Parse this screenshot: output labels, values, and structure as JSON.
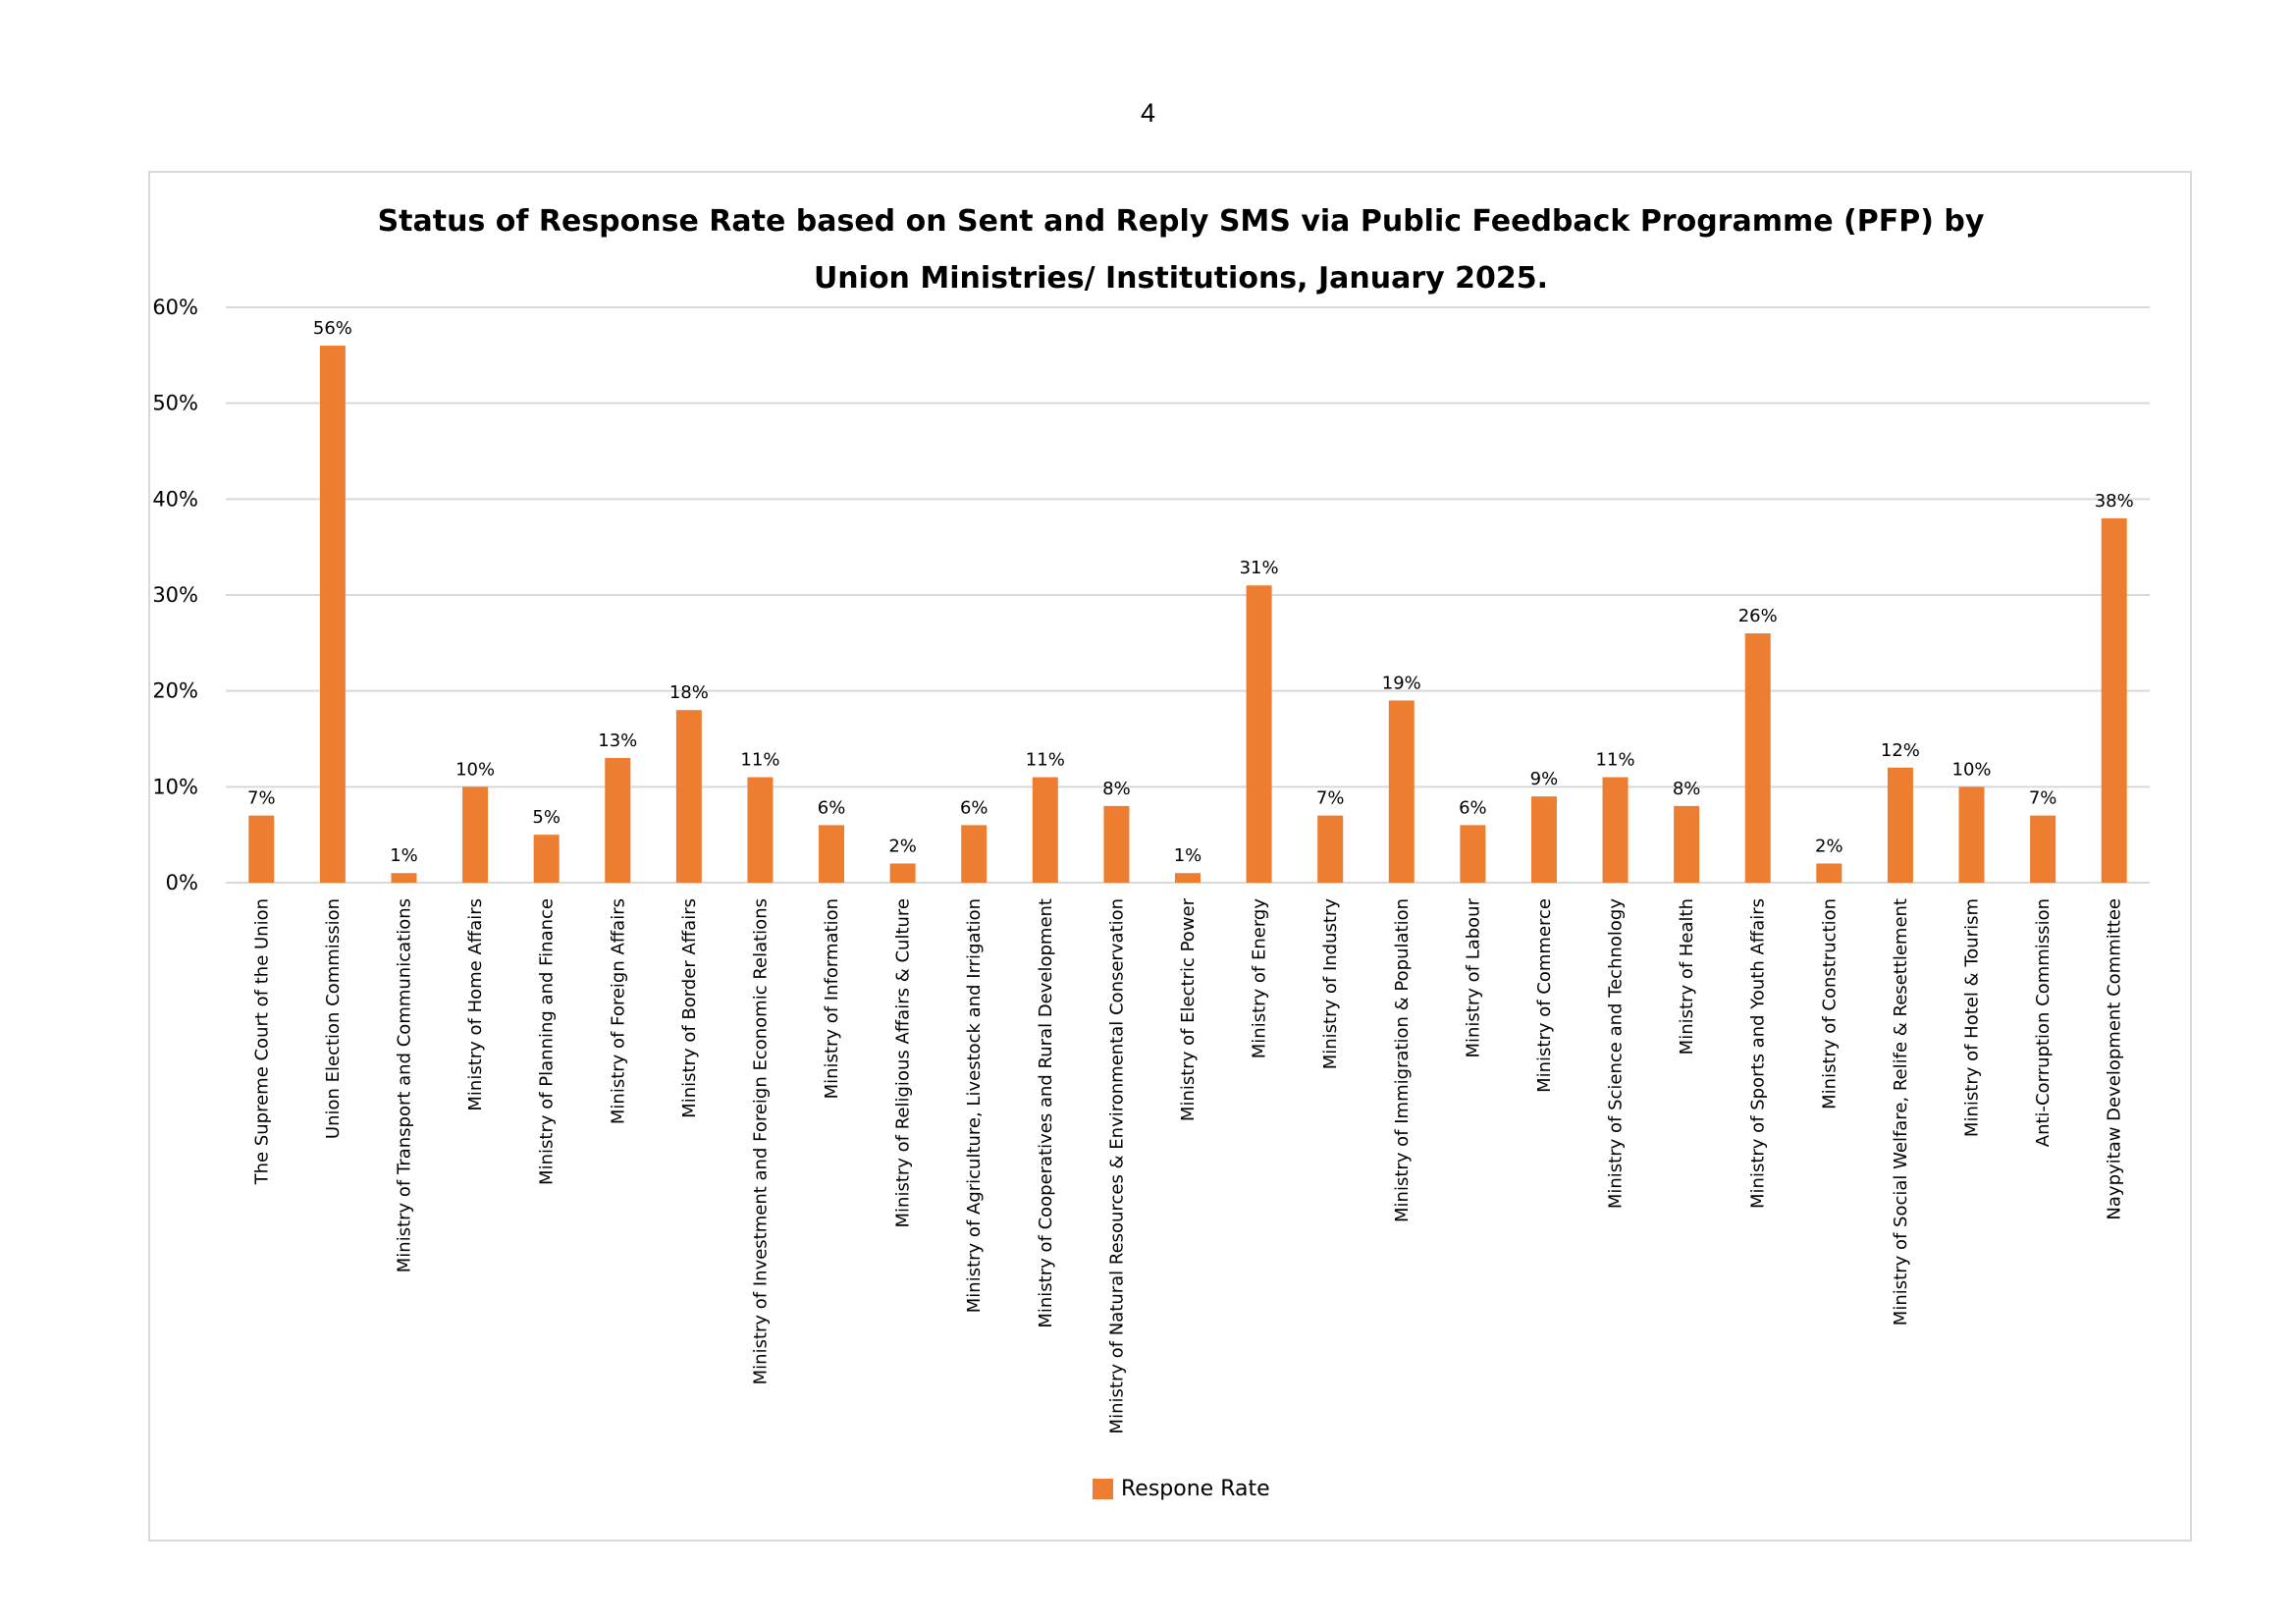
{
  "page": {
    "number": "4"
  },
  "chart_data": {
    "type": "bar",
    "title": [
      "Status of Response Rate based on Sent and Reply SMS via Public Feedback Programme (PFP) by",
      "Union Ministries/ Institutions, January 2025."
    ],
    "ylim": [
      0,
      60
    ],
    "yticks": [
      "0%",
      "10%",
      "20%",
      "30%",
      "40%",
      "50%",
      "60%"
    ],
    "grid": true,
    "legend": {
      "position": "bottom",
      "entries": [
        "Respone Rate"
      ]
    },
    "colors": {
      "bar": "#ED7D31",
      "grid": "#d9d9d9"
    },
    "categories": [
      "The Supreme Court of the Union",
      "Union Election Commission",
      "Ministry of Transport and Communications",
      "Ministry of Home Affairs",
      "Ministry of Planning and Finance",
      "Ministry of Foreign Affairs",
      "Ministry of Border Affairs",
      "Ministry of Investment and Foreign Economic Relations",
      "Ministry of Information",
      "Ministry of Religious Affairs & Culture",
      "Ministry of Agriculture, Livestock and Irrigation",
      "Ministry of Cooperatives and Rural Development",
      "Ministry of Natural Resources & Environmental Conservation",
      "Ministry of Electric Power",
      "Ministry of Energy",
      "Ministry of Industry",
      "Ministry of Immigration & Population",
      "Ministry of Labour",
      "Ministry of Commerce",
      "Ministry of Science and Technology",
      "Ministry of Health",
      "Ministry of Sports and Youth Affairs",
      "Ministry of Construction",
      "Ministry of Social Welfare, Relife & Resettlement",
      "Ministry of Hotel & Tourism",
      "Anti-Corruption Commission",
      "Naypyitaw Development Committee"
    ],
    "series": [
      {
        "name": "Respone Rate",
        "values": [
          7,
          56,
          1,
          10,
          5,
          13,
          18,
          11,
          6,
          2,
          6,
          11,
          8,
          1,
          31,
          7,
          19,
          6,
          9,
          11,
          8,
          26,
          2,
          12,
          10,
          7,
          38
        ],
        "labels": [
          "7%",
          "56%",
          "1%",
          "10%",
          "5%",
          "13%",
          "18%",
          "11%",
          "6%",
          "2%",
          "6%",
          "11%",
          "8%",
          "1%",
          "31%",
          "7%",
          "19%",
          "6%",
          "9%",
          "11%",
          "8%",
          "26%",
          "2%",
          "12%",
          "10%",
          "7%",
          "38%"
        ]
      }
    ]
  }
}
